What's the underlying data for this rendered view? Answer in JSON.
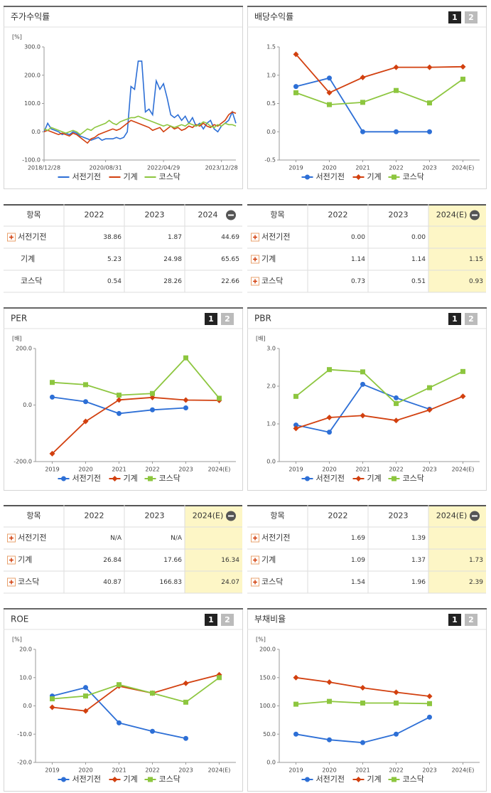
{
  "chart_data": [
    {
      "type": "line",
      "title": "주가수익률",
      "y_unit": "[%]",
      "markers": false,
      "categories": [
        "2018/12/28",
        null,
        null,
        null,
        null,
        null,
        null,
        null,
        null,
        null,
        null,
        null,
        null,
        null,
        null,
        null,
        null,
        "2020/08/31",
        null,
        null,
        null,
        null,
        null,
        null,
        null,
        null,
        null,
        null,
        null,
        null,
        null,
        null,
        null,
        "2022/04/29",
        null,
        null,
        null,
        null,
        null,
        null,
        null,
        null,
        null,
        null,
        null,
        null,
        null,
        null,
        null,
        "2023/12/28",
        null,
        null,
        null,
        null
      ],
      "ylim": [
        -100,
        300
      ],
      "yticks": [
        {
          "value": -100,
          "label": "-100.0"
        },
        {
          "value": 0,
          "label": "0.0"
        },
        {
          "value": 100,
          "label": "100.0"
        },
        {
          "value": 200,
          "label": "200.0"
        },
        {
          "value": 300,
          "label": "300.0"
        }
      ],
      "series": [
        {
          "name": "서전기전",
          "color": "#2d6fd6",
          "values": [
            0,
            30,
            10,
            5,
            0,
            -10,
            -5,
            -10,
            0,
            -5,
            -15,
            -20,
            -25,
            -30,
            -25,
            -20,
            -30,
            -25,
            -25,
            -25,
            -20,
            -25,
            -20,
            0,
            160,
            150,
            250,
            250,
            70,
            80,
            60,
            180,
            150,
            170,
            120,
            60,
            50,
            60,
            40,
            55,
            30,
            50,
            20,
            30,
            10,
            30,
            40,
            10,
            0,
            20,
            30,
            40,
            70,
            30
          ]
        },
        {
          "name": "기계",
          "color": "#d2400f",
          "values": [
            0,
            5,
            0,
            -5,
            -10,
            -5,
            -10,
            -15,
            -5,
            -10,
            -20,
            -30,
            -40,
            -25,
            -20,
            -10,
            -5,
            0,
            5,
            10,
            5,
            10,
            20,
            30,
            40,
            35,
            30,
            25,
            20,
            15,
            5,
            10,
            15,
            0,
            10,
            20,
            10,
            15,
            5,
            10,
            20,
            15,
            25,
            20,
            30,
            20,
            15,
            25,
            20,
            30,
            40,
            60,
            70,
            65
          ]
        },
        {
          "name": "코스닥",
          "color": "#8dc63f",
          "values": [
            10,
            5,
            15,
            10,
            5,
            0,
            -5,
            0,
            5,
            0,
            -10,
            0,
            10,
            5,
            15,
            20,
            25,
            30,
            40,
            30,
            25,
            35,
            40,
            45,
            50,
            50,
            55,
            50,
            45,
            40,
            35,
            30,
            25,
            20,
            25,
            20,
            15,
            20,
            25,
            20,
            30,
            25,
            20,
            25,
            35,
            30,
            20,
            15,
            25,
            20,
            30,
            25,
            25,
            20
          ]
        }
      ]
    },
    {
      "type": "line",
      "title": "배당수익률",
      "tabs": [
        "1",
        "2"
      ],
      "markers": true,
      "categories": [
        "2019",
        "2020",
        "2021",
        "2022",
        "2023",
        "2024(E)"
      ],
      "ylim": [
        -0.5,
        1.5
      ],
      "yticks": [
        -0.5,
        {
          "value": 0,
          "label": "0.0"
        },
        0.5,
        {
          "value": 1,
          "label": "1.0"
        },
        1.5
      ],
      "series": [
        {
          "name": "서전기전",
          "color": "#2d6fd6",
          "marker": "circle",
          "values": [
            0.8,
            0.95,
            0,
            0,
            0,
            null
          ]
        },
        {
          "name": "기계",
          "color": "#d2400f",
          "marker": "diamond",
          "values": [
            1.37,
            0.69,
            0.96,
            1.14,
            1.14,
            1.15
          ]
        },
        {
          "name": "코스닥",
          "color": "#8dc63f",
          "marker": "square",
          "values": [
            0.69,
            0.48,
            0.52,
            0.73,
            0.51,
            0.93
          ]
        }
      ]
    },
    {
      "type": "line",
      "title": "PER",
      "tabs": [
        "1",
        "2"
      ],
      "y_unit": "[배]",
      "markers": true,
      "categories": [
        "2019",
        "2020",
        "2021",
        "2022",
        "2023",
        "2024(E)"
      ],
      "ylim": [
        -200,
        200
      ],
      "yticks": [
        {
          "value": -200,
          "label": "-200.0"
        },
        {
          "value": 0,
          "label": "0.0"
        },
        {
          "value": 200,
          "label": "200.0"
        }
      ],
      "series": [
        {
          "name": "서전기전",
          "color": "#2d6fd6",
          "marker": "circle",
          "values": [
            28,
            12,
            -30,
            -17,
            -10,
            null
          ]
        },
        {
          "name": "기계",
          "color": "#d2400f",
          "marker": "diamond",
          "values": [
            -172,
            -58,
            18,
            26.84,
            17.66,
            16.34
          ]
        },
        {
          "name": "코스닥",
          "color": "#8dc63f",
          "marker": "square",
          "values": [
            80,
            72,
            35,
            40.87,
            166.83,
            24.07
          ]
        }
      ]
    },
    {
      "type": "line",
      "title": "PBR",
      "tabs": [
        "1",
        "2"
      ],
      "y_unit": "[배]",
      "markers": true,
      "categories": [
        "2019",
        "2020",
        "2021",
        "2022",
        "2023",
        "2024(E)"
      ],
      "ylim": [
        0,
        3
      ],
      "yticks": [
        {
          "value": 0,
          "label": "0.0"
        },
        {
          "value": 1,
          "label": "1.0"
        },
        {
          "value": 2,
          "label": "2.0"
        },
        {
          "value": 3,
          "label": "3.0"
        }
      ],
      "series": [
        {
          "name": "서전기전",
          "color": "#2d6fd6",
          "marker": "circle",
          "values": [
            0.97,
            0.78,
            2.05,
            1.69,
            1.39,
            null
          ]
        },
        {
          "name": "기계",
          "color": "#d2400f",
          "marker": "diamond",
          "values": [
            0.88,
            1.17,
            1.22,
            1.09,
            1.37,
            1.73
          ]
        },
        {
          "name": "코스닥",
          "color": "#8dc63f",
          "marker": "square",
          "values": [
            1.73,
            2.44,
            2.38,
            1.54,
            1.96,
            2.39
          ]
        }
      ]
    },
    {
      "type": "line",
      "title": "ROE",
      "tabs": [
        "1",
        "2"
      ],
      "y_unit": "[%]",
      "markers": true,
      "categories": [
        "2019",
        "2020",
        "2021",
        "2022",
        "2023",
        "2024(E)"
      ],
      "ylim": [
        -20,
        20
      ],
      "yticks": [
        {
          "value": -20,
          "label": "-20.0"
        },
        {
          "value": -10,
          "label": "-10.0"
        },
        {
          "value": 0,
          "label": "0.0"
        },
        {
          "value": 10,
          "label": "10.0"
        },
        {
          "value": 20,
          "label": "20.0"
        }
      ],
      "series": [
        {
          "name": "서전기전",
          "color": "#2d6fd6",
          "marker": "circle",
          "values": [
            3.5,
            6.5,
            -6,
            -9,
            -11.5,
            null
          ]
        },
        {
          "name": "기계",
          "color": "#d2400f",
          "marker": "diamond",
          "values": [
            -0.5,
            -1.8,
            7,
            4.5,
            8,
            11
          ]
        },
        {
          "name": "코스닥",
          "color": "#8dc63f",
          "marker": "square",
          "values": [
            2.5,
            3.5,
            7.5,
            4.5,
            1.3,
            10
          ]
        }
      ]
    },
    {
      "type": "line",
      "title": "부채비율",
      "tabs": [
        "1",
        "2"
      ],
      "y_unit": "[%]",
      "markers": true,
      "categories": [
        "2019",
        "2020",
        "2021",
        "2022",
        "2023",
        "2024(E)"
      ],
      "ylim": [
        0,
        200
      ],
      "yticks": [
        {
          "value": 0,
          "label": "0.0"
        },
        {
          "value": 50,
          "label": "50.0"
        },
        {
          "value": 100,
          "label": "100.0"
        },
        {
          "value": 150,
          "label": "150.0"
        },
        {
          "value": 200,
          "label": "200.0"
        }
      ],
      "series": [
        {
          "name": "서전기전",
          "color": "#2d6fd6",
          "marker": "circle",
          "values": [
            50,
            40,
            35,
            50,
            80,
            null
          ]
        },
        {
          "name": "기계",
          "color": "#d2400f",
          "marker": "diamond",
          "values": [
            150,
            142,
            132,
            124,
            117,
            null
          ]
        },
        {
          "name": "코스닥",
          "color": "#8dc63f",
          "marker": "square",
          "values": [
            103,
            108,
            105,
            105,
            104,
            null
          ]
        }
      ]
    }
  ],
  "tables": [
    {
      "header": [
        "항목",
        "2022",
        "2023",
        "2024"
      ],
      "highlight_last": false,
      "rows": [
        {
          "name": "서전기전",
          "icon": true,
          "values": [
            "38.86",
            "1.87",
            "44.69"
          ]
        },
        {
          "name": "기계",
          "icon": false,
          "values": [
            "5.23",
            "24.98",
            "65.65"
          ]
        },
        {
          "name": "코스닥",
          "icon": false,
          "values": [
            "0.54",
            "28.26",
            "22.66"
          ]
        }
      ]
    },
    {
      "header": [
        "항목",
        "2022",
        "2023",
        "2024(E)"
      ],
      "highlight_last": true,
      "rows": [
        {
          "name": "서전기전",
          "icon": true,
          "values": [
            "0.00",
            "0.00",
            null
          ]
        },
        {
          "name": "기계",
          "icon": true,
          "values": [
            "1.14",
            "1.14",
            "1.15"
          ]
        },
        {
          "name": "코스닥",
          "icon": true,
          "values": [
            "0.73",
            "0.51",
            "0.93"
          ]
        }
      ]
    },
    {
      "header": [
        "항목",
        "2022",
        "2023",
        "2024(E)"
      ],
      "highlight_last": true,
      "rows": [
        {
          "name": "서전기전",
          "icon": true,
          "values": [
            "N/A",
            "N/A",
            null
          ]
        },
        {
          "name": "기계",
          "icon": true,
          "values": [
            "26.84",
            "17.66",
            "16.34"
          ]
        },
        {
          "name": "코스닥",
          "icon": true,
          "values": [
            "40.87",
            "166.83",
            "24.07"
          ]
        }
      ]
    },
    {
      "header": [
        "항목",
        "2022",
        "2023",
        "2024(E)"
      ],
      "highlight_last": true,
      "rows": [
        {
          "name": "서전기전",
          "icon": true,
          "values": [
            "1.69",
            "1.39",
            null
          ]
        },
        {
          "name": "기계",
          "icon": true,
          "values": [
            "1.09",
            "1.37",
            "1.73"
          ]
        },
        {
          "name": "코스닥",
          "icon": true,
          "values": [
            "1.54",
            "1.96",
            "2.39"
          ]
        }
      ]
    }
  ]
}
